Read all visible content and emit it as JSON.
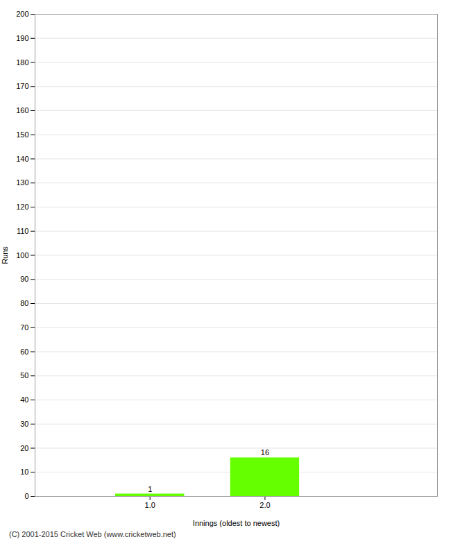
{
  "chart_data": {
    "type": "bar",
    "x": [
      1,
      2
    ],
    "values": [
      1,
      16
    ],
    "color": "#66ff00",
    "xlabel": "Innings (oldest to newest)",
    "ylabel": "Runs",
    "xlim": [
      0.0,
      3.5
    ],
    "xticks": [
      1,
      2
    ],
    "ylim": [
      0,
      200
    ],
    "yticks": [
      0,
      10,
      20,
      30,
      40,
      50,
      60,
      70,
      80,
      90,
      100,
      110,
      120,
      130,
      140,
      150,
      160,
      170,
      180,
      190,
      200
    ],
    "grid": true,
    "data_labels": true,
    "annotations": [
      "(C) 2001-2015 Cricket Web (www.cricketweb.net)"
    ]
  }
}
